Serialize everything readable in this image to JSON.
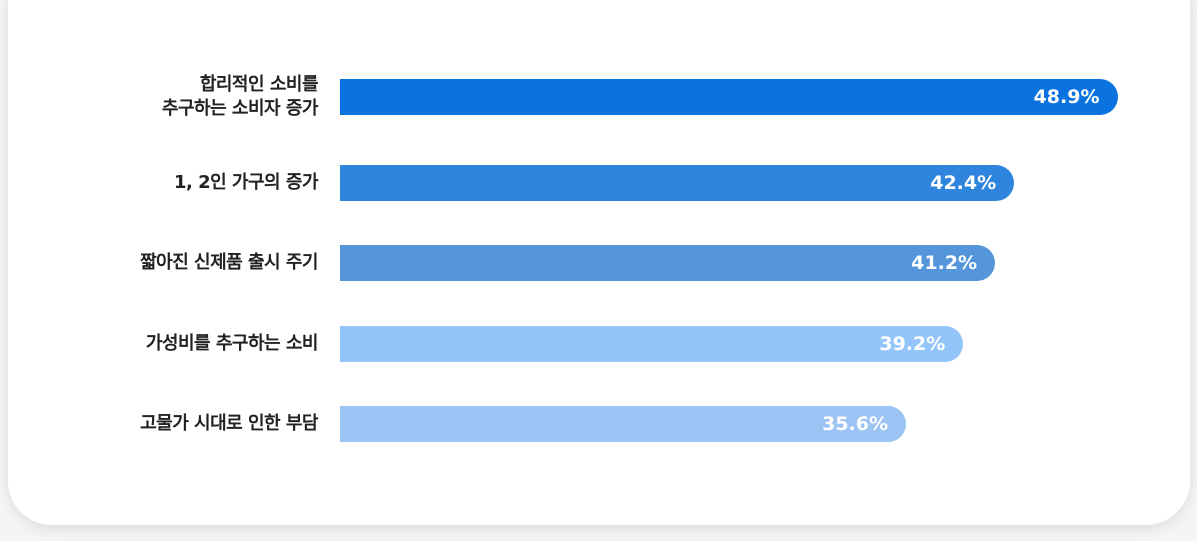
{
  "chart_data": {
    "type": "bar",
    "orientation": "horizontal",
    "categories": [
      "합리적인 소비를\n추구하는 소비자 증가",
      "1, 2인 가구의 증가",
      "짧아진 신제품 출시 주기",
      "가성비를 추구하는 소비",
      "고물가 시대로 인한 부담"
    ],
    "values": [
      48.9,
      42.4,
      41.2,
      39.2,
      35.6
    ],
    "value_labels": [
      "48.9%",
      "42.4%",
      "41.2%",
      "39.2%",
      "35.6%"
    ],
    "colors": [
      "#0a73e0",
      "#2f84dd",
      "#5596db",
      "#93c5fb",
      "#9bc3f3"
    ]
  }
}
